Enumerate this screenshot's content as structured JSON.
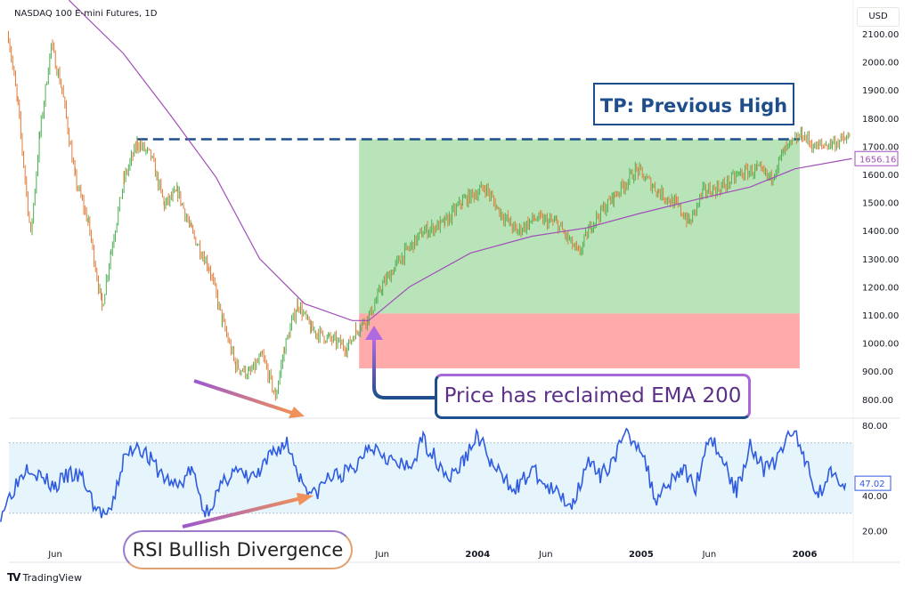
{
  "header": {
    "title": "NASDAQ 100 E-mini Futures, 1D",
    "currency": "USD"
  },
  "annotations": {
    "tp": "TP: Previous High",
    "ema": "Price has reclaimed EMA 200",
    "rsi": "RSI Bullish Divergence"
  },
  "footer": {
    "brand": "TradingView"
  },
  "colors": {
    "up": "#26a69a",
    "candle_up": "#4caf50",
    "candle_down": "#e07b39",
    "ema": "#a04fb8",
    "rsi": "#2f5be0",
    "tp_line": "#1f4e8c",
    "profit_zone": "#b9e4b9",
    "loss_zone": "#ffaaaa",
    "rsi_band": "#e6f4fb"
  },
  "chart_data": [
    {
      "type": "line",
      "pane": "price",
      "scale": "linear",
      "ylim": [
        750,
        2150
      ],
      "y_ticks": [
        "2100.00",
        "2000.00",
        "1900.00",
        "1800.00",
        "1700.00",
        "1600.00",
        "1500.00",
        "1400.00",
        "1300.00",
        "1200.00",
        "1100.00",
        "1000.00",
        "900.00",
        "800.00"
      ],
      "x_ticks": [
        "Jun",
        "Jun",
        "2004",
        "Jun",
        "2005",
        "Jun",
        "2006"
      ],
      "x_tick_dates": [
        "2001-06-01",
        "2003-06-01",
        "2004-01-01",
        "2004-06-01",
        "2005-01-01",
        "2005-06-01",
        "2006-01-01"
      ],
      "series": [
        {
          "key": "price",
          "x": [
            "2001-02-18",
            "2001-03-09",
            "2001-04-07",
            "2001-04-27",
            "2001-05-22",
            "2001-06-16",
            "2001-07-15",
            "2001-08-14",
            "2001-09-14",
            "2001-10-04",
            "2001-11-03",
            "2001-12-02",
            "2002-01-02",
            "2002-02-01",
            "2002-03-01",
            "2002-04-01",
            "2002-05-10",
            "2002-06-09",
            "2002-07-08",
            "2002-08-08",
            "2002-09-07",
            "2002-10-06",
            "2002-10-26",
            "2002-11-25",
            "2002-12-25",
            "2003-02-04",
            "2003-03-14",
            "2003-04-03",
            "2003-05-02",
            "2003-06-02",
            "2003-07-11",
            "2003-09-01",
            "2003-10-19",
            "2003-11-28",
            "2004-01-18",
            "2004-02-16",
            "2004-03-27",
            "2004-05-06",
            "2004-06-25",
            "2004-08-13",
            "2004-09-13",
            "2004-11-01",
            "2004-12-21",
            "2005-02-10",
            "2005-03-19",
            "2005-04-18",
            "2005-05-17",
            "2005-06-28",
            "2005-08-07",
            "2005-09-16",
            "2005-10-15",
            "2005-11-15",
            "2005-12-25",
            "2006-01-23",
            "2006-03-02",
            "2006-04-12"
          ],
          "values": [
            2094,
            1841,
            1382,
            1744,
            2060,
            1902,
            1585,
            1427,
            1127,
            1332,
            1585,
            1712,
            1665,
            1491,
            1538,
            1396,
            1269,
            1079,
            921,
            889,
            953,
            811,
            984,
            1142,
            1047,
            1016,
            984,
            1047,
            1095,
            1206,
            1301,
            1396,
            1427,
            1506,
            1554,
            1475,
            1396,
            1443,
            1427,
            1317,
            1427,
            1522,
            1617,
            1538,
            1491,
            1427,
            1538,
            1554,
            1601,
            1617,
            1585,
            1680,
            1744,
            1696,
            1712,
            1728
          ]
        },
        {
          "key": "ema200",
          "x": [
            "2001-07-01",
            "2001-11-01",
            "2002-02-15",
            "2002-05-25",
            "2002-09-01",
            "2002-12-10",
            "2003-03-25",
            "2003-05-01",
            "2003-08-01",
            "2003-12-15",
            "2004-05-01",
            "2004-09-01",
            "2004-12-25",
            "2005-05-01",
            "2005-09-01",
            "2005-12-10",
            "2006-04-15"
          ],
          "values": [
            2220,
            2030,
            1810,
            1590,
            1300,
            1140,
            1080,
            1080,
            1200,
            1320,
            1380,
            1410,
            1460,
            1510,
            1555,
            1620,
            1656.16
          ]
        }
      ],
      "last_ema_label": "1656.16",
      "tp_level": 1725,
      "tp_start": "2001-12-01",
      "position": {
        "start": "2003-04-10",
        "end": "2005-12-20",
        "target": 1725,
        "entry": 1105,
        "stop": 910
      }
    },
    {
      "type": "line",
      "pane": "rsi",
      "ylim": [
        10,
        85
      ],
      "y_ticks": [
        "80.00",
        "40.00",
        "20.00"
      ],
      "band": [
        30,
        70
      ],
      "last_label": "47.02",
      "x": [
        "2001-02",
        "2001-03",
        "2001-04",
        "2001-05",
        "2001-06",
        "2001-07",
        "2001-08",
        "2001-09",
        "2001-10",
        "2001-11",
        "2001-12",
        "2002-01",
        "2002-02",
        "2002-03",
        "2002-04",
        "2002-05",
        "2002-06",
        "2002-07",
        "2002-08",
        "2002-09",
        "2002-10",
        "2002-11",
        "2002-12",
        "2003-01",
        "2003-02",
        "2003-03",
        "2003-04",
        "2003-05",
        "2003-06",
        "2003-07",
        "2003-08",
        "2003-09",
        "2003-10",
        "2003-11",
        "2003-12",
        "2004-01",
        "2004-02",
        "2004-03",
        "2004-04",
        "2004-05",
        "2004-06",
        "2004-07",
        "2004-08",
        "2004-09",
        "2004-10",
        "2004-11",
        "2004-12",
        "2005-01",
        "2005-02",
        "2005-03",
        "2005-04",
        "2005-05",
        "2005-06",
        "2005-07",
        "2005-08",
        "2005-09",
        "2005-10",
        "2005-11",
        "2005-12",
        "2006-01",
        "2006-02",
        "2006-03",
        "2006-04"
      ],
      "values": [
        30,
        45,
        58,
        50,
        45,
        52,
        50,
        32,
        28,
        60,
        70,
        60,
        50,
        45,
        55,
        30,
        42,
        55,
        50,
        52,
        65,
        70,
        50,
        40,
        50,
        52,
        55,
        70,
        65,
        58,
        55,
        72,
        60,
        50,
        60,
        75,
        58,
        48,
        45,
        55,
        45,
        40,
        35,
        60,
        50,
        62,
        75,
        68,
        38,
        48,
        55,
        45,
        75,
        60,
        42,
        70,
        55,
        60,
        78,
        62,
        40,
        55,
        47.02
      ]
    }
  ]
}
